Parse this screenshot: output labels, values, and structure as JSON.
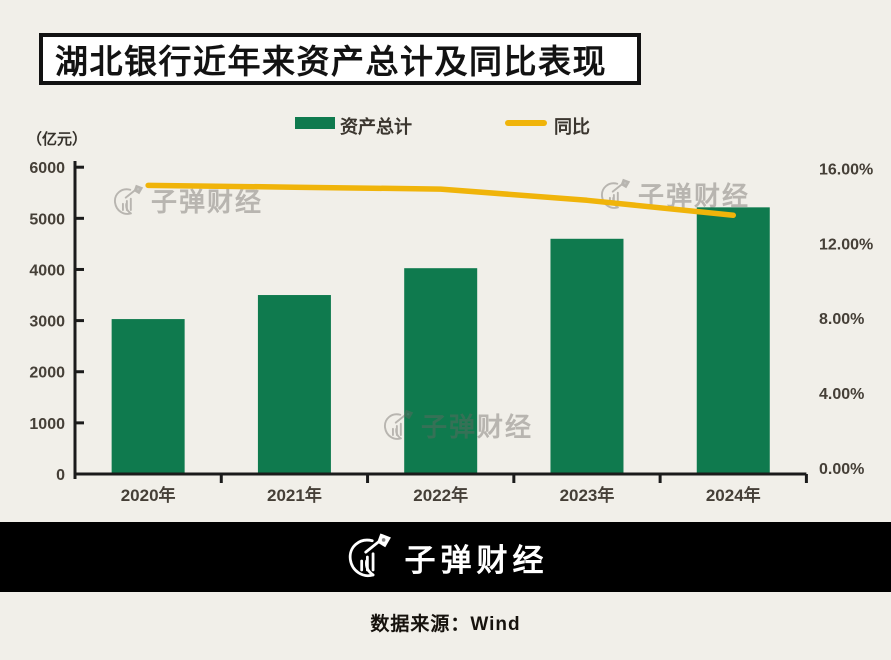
{
  "title": "湖北银行近年来资产总计及同比表现",
  "unit_label": "（亿元）",
  "legend": {
    "bar_label": "资产总计",
    "line_label": "同比"
  },
  "watermark": {
    "text": "子弹财经"
  },
  "footer": {
    "brand": "子弹财经",
    "source": "数据来源：Wind"
  },
  "colors": {
    "background": "#F1EFE9",
    "title_bg": "#FFFFFF",
    "ink": "#121212",
    "bar": "#0F7A4E",
    "line": "#F0B40A",
    "axis": "#1B1B1B",
    "tick_text": "#453F37",
    "watermark": "#6B6762",
    "footer_bg": "#000000",
    "footer_text": "#FFFFFF"
  },
  "chart_data": {
    "type": "combo (bar + line)",
    "title": "湖北银行近年来资产总计及同比表现",
    "categories": [
      "2020年",
      "2021年",
      "2022年",
      "2023年",
      "2024年"
    ],
    "series": [
      {
        "name": "资产总计",
        "type": "bar",
        "axis": "left",
        "unit": "亿元",
        "values": [
          3030,
          3500,
          4025,
          4600,
          5215
        ]
      },
      {
        "name": "同比",
        "type": "line",
        "axis": "right",
        "unit": "%",
        "values": [
          15.1,
          15.0,
          14.9,
          14.3,
          13.5
        ]
      }
    ],
    "left_axis": {
      "label": "（亿元）",
      "min": 0,
      "max": 6000,
      "tick_values": [
        0,
        1000,
        2000,
        3000,
        4000,
        5000,
        6000
      ],
      "tick_labels": [
        "0",
        "1000",
        "2000",
        "3000",
        "4000",
        "5000",
        "6000"
      ]
    },
    "right_axis": {
      "min": 0,
      "max": 16,
      "tick_values": [
        0,
        4,
        8,
        12,
        16
      ],
      "tick_labels": [
        "0.00%",
        "4.00%",
        "8.00%",
        "12.00%",
        "16.00%"
      ]
    },
    "x_axis": {
      "labels": [
        "2020年",
        "2021年",
        "2022年",
        "2023年",
        "2024年"
      ]
    },
    "legend_position": "top",
    "grid": false
  }
}
